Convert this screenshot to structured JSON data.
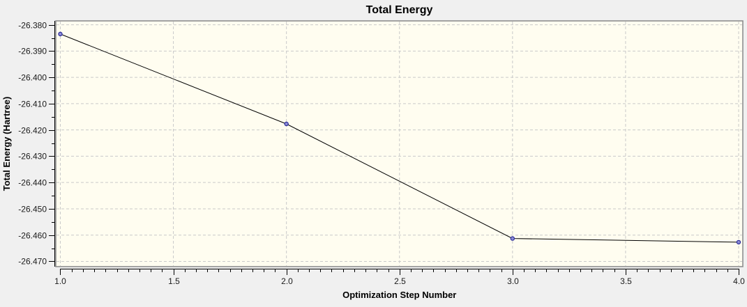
{
  "chart_data": {
    "type": "line",
    "title": "Total Energy",
    "xlabel": "Optimization Step Number",
    "ylabel": "Total Energy (Hartree)",
    "series": [
      {
        "name": "Total Energy",
        "x": [
          1.0,
          2.0,
          3.0,
          4.0
        ],
        "y": [
          -26.3835,
          -26.4177,
          -26.4613,
          -26.4627
        ]
      }
    ],
    "x_ticks": [
      {
        "value": 1.0,
        "label": "1.0"
      },
      {
        "value": 1.5,
        "label": "1.5"
      },
      {
        "value": 2.0,
        "label": "2.0"
      },
      {
        "value": 2.5,
        "label": "2.5"
      },
      {
        "value": 3.0,
        "label": "3.0"
      },
      {
        "value": 3.5,
        "label": "3.5"
      },
      {
        "value": 4.0,
        "label": "4.0"
      }
    ],
    "y_ticks": [
      {
        "value": -26.38,
        "label": "-26.380"
      },
      {
        "value": -26.39,
        "label": "-26.390"
      },
      {
        "value": -26.4,
        "label": "-26.400"
      },
      {
        "value": -26.41,
        "label": "-26.410"
      },
      {
        "value": -26.42,
        "label": "-26.420"
      },
      {
        "value": -26.43,
        "label": "-26.430"
      },
      {
        "value": -26.44,
        "label": "-26.440"
      },
      {
        "value": -26.45,
        "label": "-26.450"
      },
      {
        "value": -26.46,
        "label": "-26.460"
      },
      {
        "value": -26.47,
        "label": "-26.470"
      }
    ],
    "x_minor_step": 0.05,
    "y_minor_step": 0.005,
    "xlim": [
      0.98,
      4.0185
    ],
    "ylim": [
      -26.472,
      -26.3785
    ],
    "grid": true,
    "legend": "none",
    "colors": {
      "page_background": "#f0f0f0",
      "plot_background": "#fffdf0",
      "plot_frame": "#8e8e8e",
      "gridline": "#c9c9c9",
      "axis_line": "#000000",
      "series_line": "#000000",
      "marker_fill": "#8d8dd6",
      "marker_stroke": "#2a2a99",
      "text": "#000000"
    }
  }
}
